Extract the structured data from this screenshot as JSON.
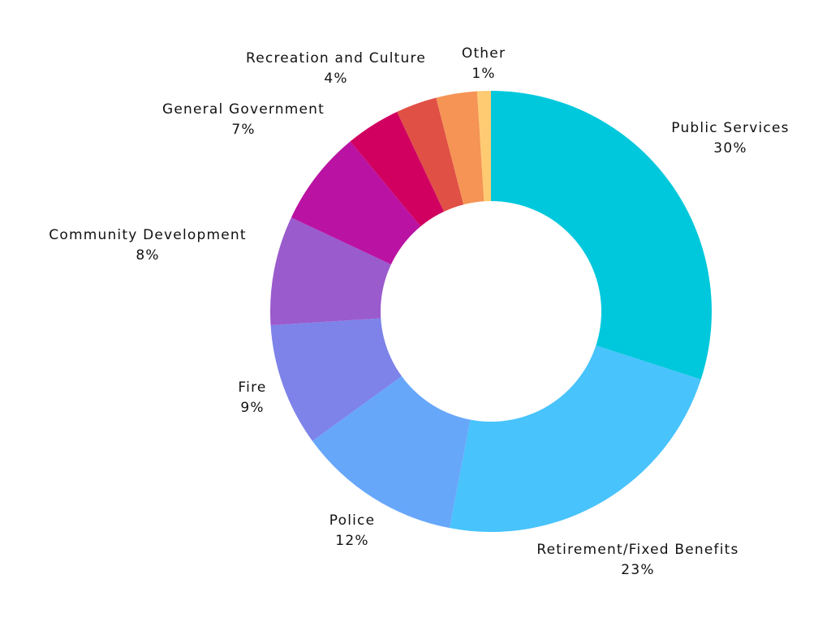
{
  "chart_data": {
    "type": "pie",
    "variant": "donut",
    "title": "",
    "legend": "none",
    "slices": [
      {
        "label": "Public Services",
        "value": 30,
        "value_label": "30%",
        "color": "#00C8DC"
      },
      {
        "label": "Retirement/Fixed Benefits",
        "value": 23,
        "value_label": "23%",
        "color": "#48C3FB"
      },
      {
        "label": "Police",
        "value": 12,
        "value_label": "12%",
        "color": "#67A7FA"
      },
      {
        "label": "Fire",
        "value": 9,
        "value_label": "9%",
        "color": "#7D83E8"
      },
      {
        "label": "Community Development",
        "value": 8,
        "value_label": "8%",
        "color": "#9A5BCD"
      },
      {
        "label": "General Government",
        "value": 7,
        "value_label": "7%",
        "color": "#BA12A2"
      },
      {
        "label": "Recreation and Culture",
        "value": 4,
        "value_label": "4%",
        "color": "#D10060"
      },
      {
        "label": "",
        "value": 3,
        "value_label": "",
        "color": "#E05045"
      },
      {
        "label": "",
        "value": 3,
        "value_label": "",
        "color": "#F59455"
      },
      {
        "label": "Other",
        "value": 1,
        "value_label": "1%",
        "color": "#FFCB72"
      }
    ]
  }
}
